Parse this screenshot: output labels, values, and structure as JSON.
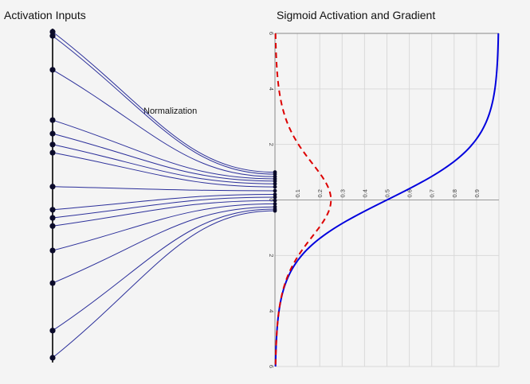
{
  "titles": {
    "left": "Activation Inputs",
    "right": "Sigmoid Activation and Gradient",
    "annotation": "Normalization"
  },
  "chart_data": {
    "type": "line",
    "x_axis": {
      "lim": [
        -6,
        6
      ],
      "ticks": [
        "6",
        "4",
        "2",
        "0",
        "2",
        "4",
        "6"
      ],
      "tick_values": [
        -6,
        -4,
        -2,
        0,
        2,
        4,
        6
      ]
    },
    "y_axis": {
      "lim": [
        0,
        1
      ],
      "ticks": [
        "0.1",
        "0.2",
        "0.3",
        "0.4",
        "0.5",
        "0.6",
        "0.7",
        "0.8",
        "0.9"
      ],
      "tick_values": [
        0.1,
        0.2,
        0.3,
        0.4,
        0.5,
        0.6,
        0.7,
        0.8,
        0.9
      ]
    },
    "orientation": "x on vertical axis, output on horizontal axis",
    "series": [
      {
        "function": "sigmoid",
        "color": "#0000dd",
        "style": "solid"
      },
      {
        "function": "sigmoid_derivative",
        "color": "#dd0000",
        "style": "dashed"
      }
    ],
    "input_values": [
      -6,
      -5.85,
      -4.6,
      -2.75,
      -2.25,
      -1.85,
      -1.55,
      -0.3,
      0.55,
      0.85,
      1.15,
      2.05,
      3.25,
      5.0,
      6.0
    ],
    "normalized_values": [
      -1.0,
      -0.93,
      -0.84,
      -0.76,
      -0.68,
      -0.58,
      -0.47,
      -0.33,
      -0.2,
      -0.1,
      0.02,
      0.14,
      0.25,
      0.33,
      0.39
    ]
  },
  "colors": {
    "connections": "#2b2f9a",
    "dots": "#0b0b2a",
    "grid": "#d9d9d9"
  }
}
